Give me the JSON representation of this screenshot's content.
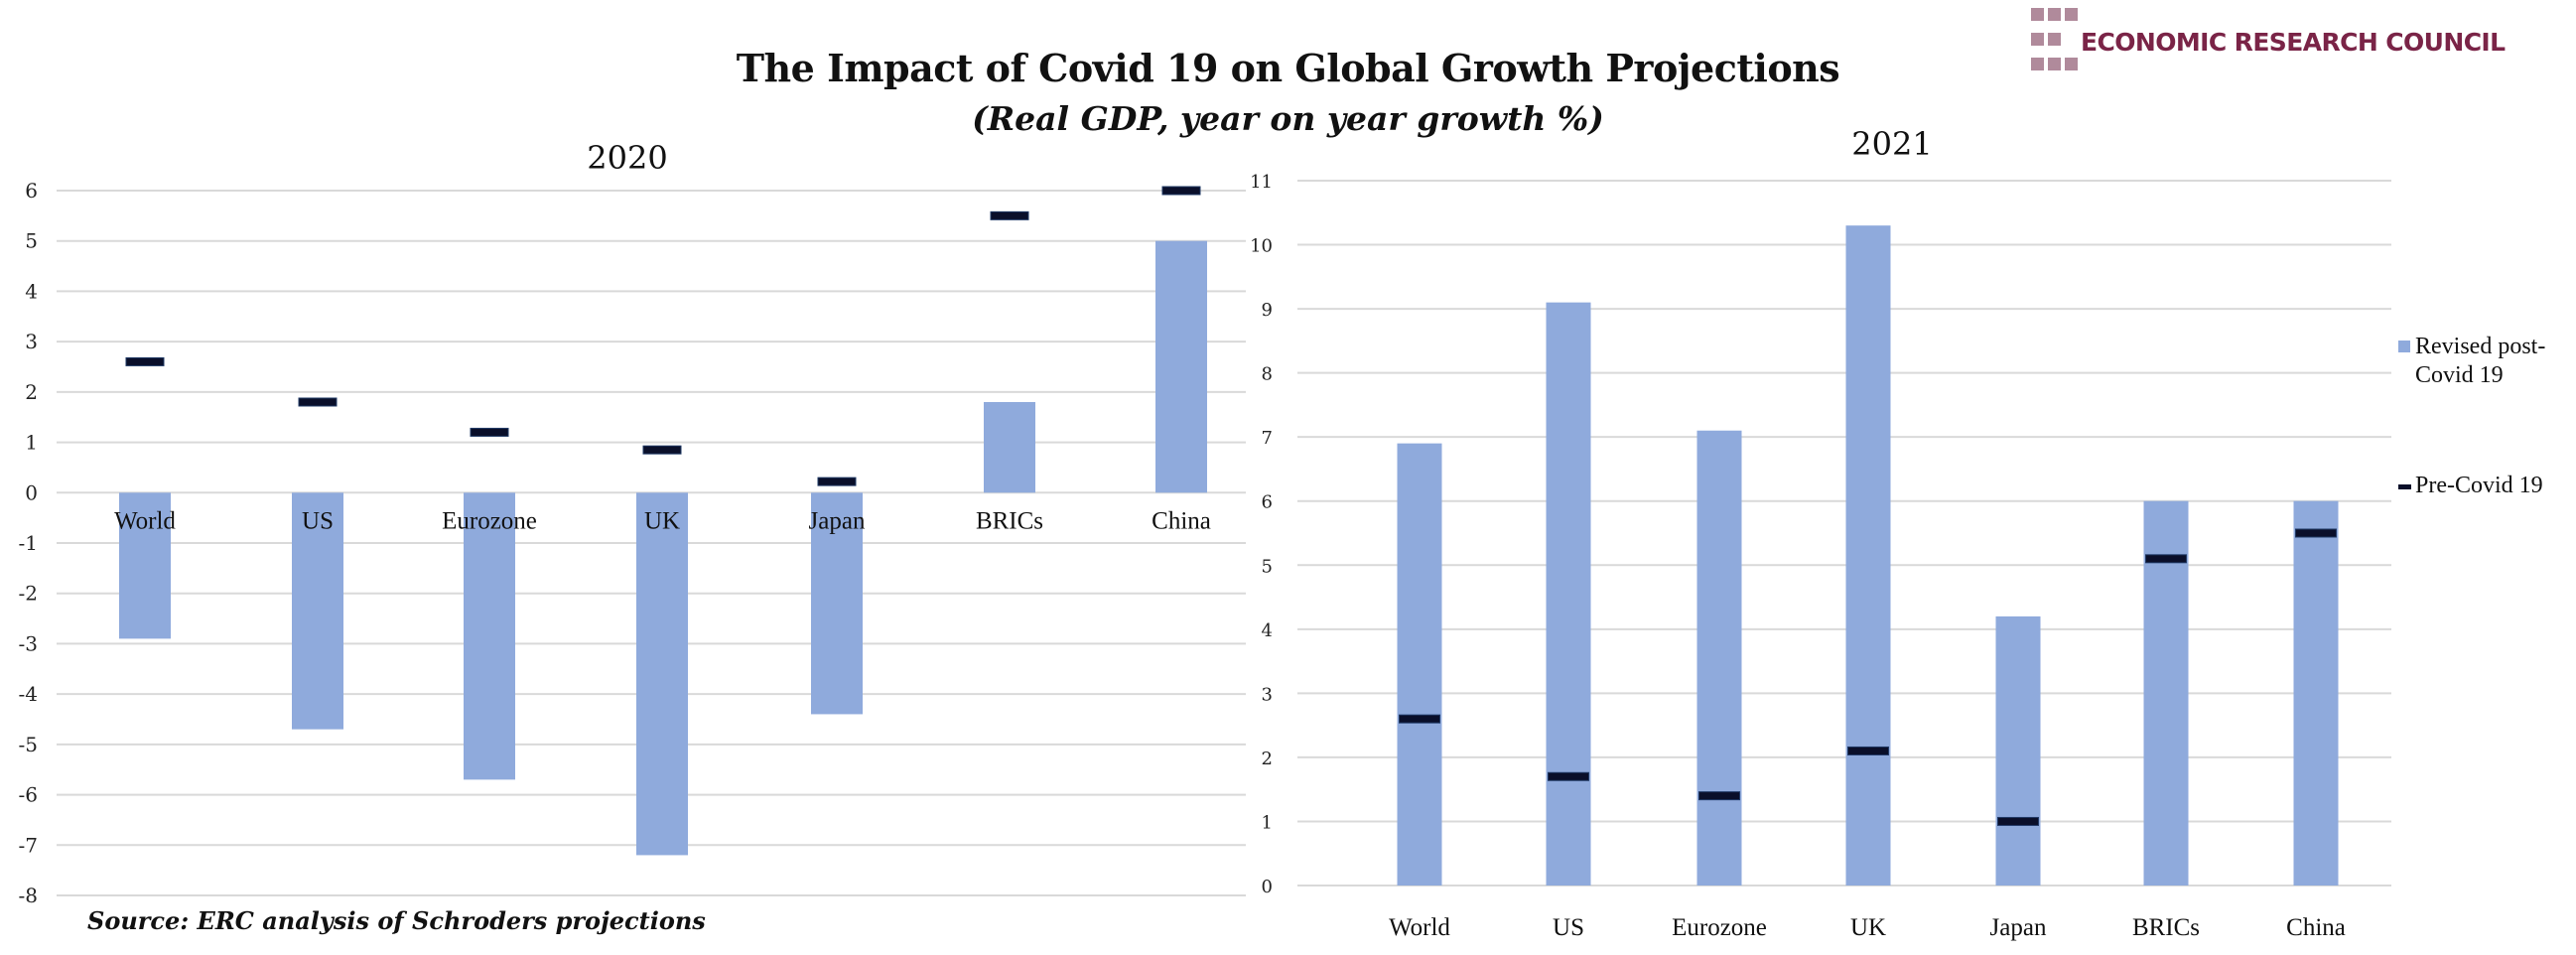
{
  "header": {
    "title": "The Impact of Covid 19 on Global Growth Projections",
    "subtitle": "(Real GDP, year on year growth %)",
    "logo_text": "ECONOMIC RESEARCH COUNCIL",
    "source": "Source: ERC analysis of Schroders projections"
  },
  "colors": {
    "revised": "#8faadc",
    "pre_covid": "#0a0f2a",
    "gridline": "#d9d9d9",
    "logo_text": "#7a2447",
    "logo_squares": "#b08a9b"
  },
  "legend": [
    {
      "name": "Revised post-Covid 19",
      "lines": [
        "Revised post-",
        "Covid 19"
      ],
      "marker": "square"
    },
    {
      "name": "Pre-Covid 19",
      "lines": [
        "Pre-Covid 19"
      ],
      "marker": "dash"
    }
  ],
  "chart_data": [
    {
      "type": "bar",
      "title": "2020",
      "categories": [
        "World",
        "US",
        "Eurozone",
        "UK",
        "Japan",
        "BRICs",
        "China"
      ],
      "series": [
        {
          "name": "Revised post-Covid 19",
          "kind": "bar",
          "values": [
            -2.9,
            -4.7,
            -5.7,
            -7.2,
            -4.4,
            1.8,
            5.0
          ]
        },
        {
          "name": "Pre-Covid 19",
          "kind": "marker",
          "values": [
            2.6,
            1.8,
            1.2,
            0.85,
            0.22,
            5.5,
            6.0
          ]
        }
      ],
      "xlabel": "",
      "ylabel": "",
      "ylim": [
        -8,
        6
      ],
      "yticks": [
        6,
        5,
        4,
        3,
        2,
        1,
        0,
        -1,
        -2,
        -3,
        -4,
        -5,
        -6,
        -7,
        -8
      ],
      "grid": true
    },
    {
      "type": "bar",
      "title": "2021",
      "categories": [
        "World",
        "US",
        "Eurozone",
        "UK",
        "Japan",
        "BRICs",
        "China"
      ],
      "series": [
        {
          "name": "Revised post-Covid 19",
          "kind": "bar",
          "values": [
            6.9,
            9.1,
            7.1,
            10.3,
            4.2,
            6.0,
            6.0
          ]
        },
        {
          "name": "Pre-Covid 19",
          "kind": "marker",
          "values": [
            2.6,
            1.7,
            1.4,
            2.1,
            1.0,
            5.1,
            5.5
          ]
        }
      ],
      "xlabel": "",
      "ylabel": "",
      "ylim": [
        0,
        11
      ],
      "yticks": [
        11,
        10,
        9,
        8,
        7,
        6,
        5,
        4,
        3,
        2,
        1,
        0
      ],
      "grid": true,
      "legend_position": "right"
    }
  ]
}
